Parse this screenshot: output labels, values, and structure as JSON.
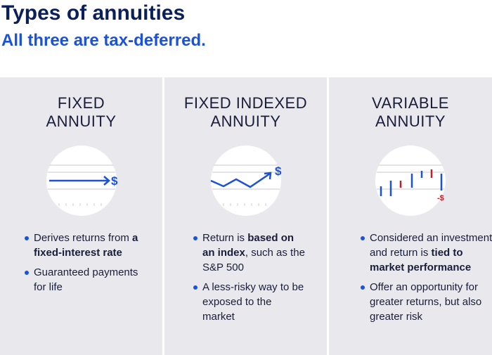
{
  "header": {
    "title": "Types of annuities",
    "subtitle": "All three are tax-deferred."
  },
  "columns": [
    {
      "title": [
        "FIXED",
        "ANNUITY"
      ],
      "icon_label": "$",
      "bullets": [
        [
          {
            "text": "Derives returns from "
          },
          {
            "text": "a fixed-interest rate",
            "bold": true
          }
        ],
        [
          {
            "text": "Guaranteed payments for life"
          }
        ]
      ]
    },
    {
      "title": [
        "FIXED INDEXED",
        "ANNUITY"
      ],
      "icon_label": "$",
      "bullets": [
        [
          {
            "text": "Return is "
          },
          {
            "text": "based on an index",
            "bold": true
          },
          {
            "text": ", such as the S&P 500"
          }
        ],
        [
          {
            "text": "A less-risky way to be exposed to the market"
          }
        ]
      ]
    },
    {
      "title": [
        "VARIABLE",
        "ANNUITY"
      ],
      "icon_label": "-$",
      "bullets": [
        [
          {
            "text": "Considered an investment and return is "
          },
          {
            "text": "tied to market performance",
            "bold": true
          }
        ],
        [
          {
            "text": "Offer an opportunity for greater returns, but also greater risk"
          }
        ]
      ]
    }
  ]
}
